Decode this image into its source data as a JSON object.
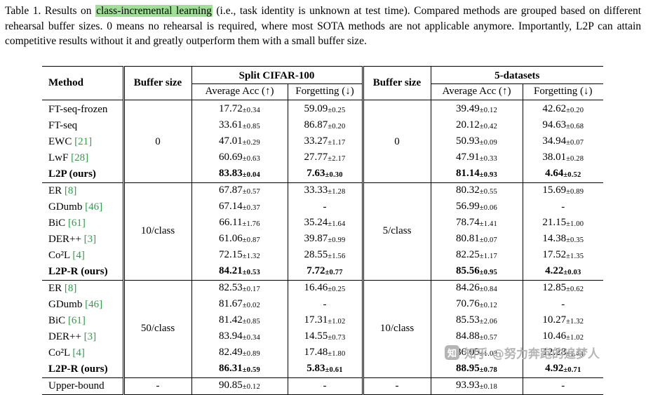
{
  "colors": {
    "cite": "#2e9e47",
    "highlight": "#9fe096",
    "watermark": "#b5b5b5"
  },
  "caption": {
    "label": "Table 1.",
    "pre": " Results on ",
    "highlight": "class-incremental learning",
    "post": " (i.e., task identity is unknown at test time). Compared methods are grouped based on different rehearsal buffer sizes. 0 means no rehearsal is required, where most SOTA methods are not applicable anymore. Importantly, L2P can attain competitive results without it and greatly outperform them with a small buffer size."
  },
  "table": {
    "col_headers": {
      "method": "Method",
      "buffer_cifar": "Buffer size",
      "cifar_group": "Split CIFAR-100",
      "buffer_five": "Buffer size",
      "five_group": "5-datasets",
      "avg_acc": "Average Acc (↑)",
      "forgetting": "Forgetting (↓)"
    },
    "groups": [
      {
        "buffer_cifar": "0",
        "buffer_five": "0",
        "rows": [
          {
            "method": "FT-seq-frozen",
            "cite": "",
            "bold": false,
            "values": [
              [
                "17.72",
                "±0.34"
              ],
              [
                "59.09",
                "±0.25"
              ],
              [
                "39.49",
                "±0.12"
              ],
              [
                "42.62",
                "±0.20"
              ]
            ]
          },
          {
            "method": "FT-seq",
            "cite": "",
            "bold": false,
            "values": [
              [
                "33.61",
                "±0.85"
              ],
              [
                "86.87",
                "±0.20"
              ],
              [
                "20.12",
                "±0.42"
              ],
              [
                "94.63",
                "±0.68"
              ]
            ]
          },
          {
            "method": "EWC",
            "cite": "[21]",
            "bold": false,
            "values": [
              [
                "47.01",
                "±0.29"
              ],
              [
                "33.27",
                "±1.17"
              ],
              [
                "50.93",
                "±0.09"
              ],
              [
                "34.94",
                "±0.07"
              ]
            ]
          },
          {
            "method": "LwF",
            "cite": "[28]",
            "bold": false,
            "values": [
              [
                "60.69",
                "±0.63"
              ],
              [
                "27.77",
                "±2.17"
              ],
              [
                "47.91",
                "±0.33"
              ],
              [
                "38.01",
                "±0.28"
              ]
            ]
          },
          {
            "method": "L2P (ours)",
            "cite": "",
            "bold": true,
            "values": [
              [
                "83.83",
                "±0.04"
              ],
              [
                "7.63",
                "±0.30"
              ],
              [
                "81.14",
                "±0.93"
              ],
              [
                "4.64",
                "±0.52"
              ]
            ]
          }
        ]
      },
      {
        "buffer_cifar": "10/class",
        "buffer_five": "5/class",
        "rows": [
          {
            "method": "ER",
            "cite": "[8]",
            "bold": false,
            "values": [
              [
                "67.87",
                "±0.57"
              ],
              [
                "33.33",
                "±1.28"
              ],
              [
                "80.32",
                "±0.55"
              ],
              [
                "15.69",
                "±0.89"
              ]
            ]
          },
          {
            "method": "GDumb",
            "cite": "[46]",
            "bold": false,
            "values": [
              [
                "67.14",
                "±0.37"
              ],
              [
                "-",
                ""
              ],
              [
                "56.99",
                "±0.06"
              ],
              [
                "-",
                ""
              ]
            ]
          },
          {
            "method": "BiC",
            "cite": "[61]",
            "bold": false,
            "values": [
              [
                "66.11",
                "±1.76"
              ],
              [
                "35.24",
                "±1.64"
              ],
              [
                "78.74",
                "±1.41"
              ],
              [
                "21.15",
                "±1.00"
              ]
            ]
          },
          {
            "method": "DER++",
            "cite": "[3]",
            "bold": false,
            "values": [
              [
                "61.06",
                "±0.87"
              ],
              [
                "39.87",
                "±0.99"
              ],
              [
                "80.81",
                "±0.07"
              ],
              [
                "14.38",
                "±0.35"
              ]
            ]
          },
          {
            "method": "Co²L",
            "cite": "[4]",
            "bold": false,
            "values": [
              [
                "72.15",
                "±1.32"
              ],
              [
                "28.55",
                "±1.56"
              ],
              [
                "82.25",
                "±1.17"
              ],
              [
                "17.52",
                "±1.35"
              ]
            ]
          },
          {
            "method": "L2P-R (ours)",
            "cite": "",
            "bold": true,
            "values": [
              [
                "84.21",
                "±0.53"
              ],
              [
                "7.72",
                "±0.77"
              ],
              [
                "85.56",
                "±0.95"
              ],
              [
                "4.22",
                "±0.03"
              ]
            ]
          }
        ]
      },
      {
        "buffer_cifar": "50/class",
        "buffer_five": "10/class",
        "rows": [
          {
            "method": "ER",
            "cite": "[8]",
            "bold": false,
            "values": [
              [
                "82.53",
                "±0.17"
              ],
              [
                "16.46",
                "±0.25"
              ],
              [
                "84.26",
                "±0.84"
              ],
              [
                "12.85",
                "±0.62"
              ]
            ]
          },
          {
            "method": "GDumb",
            "cite": "[46]",
            "bold": false,
            "values": [
              [
                "81.67",
                "±0.02"
              ],
              [
                "-",
                ""
              ],
              [
                "70.76",
                "±0.12"
              ],
              [
                "-",
                ""
              ]
            ]
          },
          {
            "method": "BiC",
            "cite": "[61]",
            "bold": false,
            "values": [
              [
                "81.42",
                "±0.85"
              ],
              [
                "17.31",
                "±1.02"
              ],
              [
                "85.53",
                "±2.06"
              ],
              [
                "10.27",
                "±1.32"
              ]
            ]
          },
          {
            "method": "DER++",
            "cite": "[3]",
            "bold": false,
            "values": [
              [
                "83.94",
                "±0.34"
              ],
              [
                "14.55",
                "±0.73"
              ],
              [
                "84.88",
                "±0.57"
              ],
              [
                "10.46",
                "±1.02"
              ]
            ]
          },
          {
            "method": "Co²L",
            "cite": "[4]",
            "bold": false,
            "values": [
              [
                "82.49",
                "±0.89"
              ],
              [
                "17.48",
                "±1.80"
              ],
              [
                "86.05",
                "±1.03"
              ],
              [
                "12.28",
                "±1.44"
              ]
            ]
          },
          {
            "method": "L2P-R (ours)",
            "cite": "",
            "bold": true,
            "values": [
              [
                "86.31",
                "±0.59"
              ],
              [
                "5.83",
                "±0.61"
              ],
              [
                "88.95",
                "±0.78"
              ],
              [
                "4.92",
                "±0.71"
              ]
            ]
          }
        ]
      },
      {
        "buffer_cifar": "-",
        "buffer_five": "-",
        "rows": [
          {
            "method": "Upper-bound",
            "cite": "",
            "bold": false,
            "values": [
              [
                "90.85",
                "±0.12"
              ],
              [
                "-",
                ""
              ],
              [
                "93.93",
                "±0.18"
              ],
              [
                "-",
                ""
              ]
            ]
          }
        ]
      }
    ]
  },
  "watermark": {
    "logo": "知",
    "text": "知乎 @努力奔跑的追梦人"
  }
}
